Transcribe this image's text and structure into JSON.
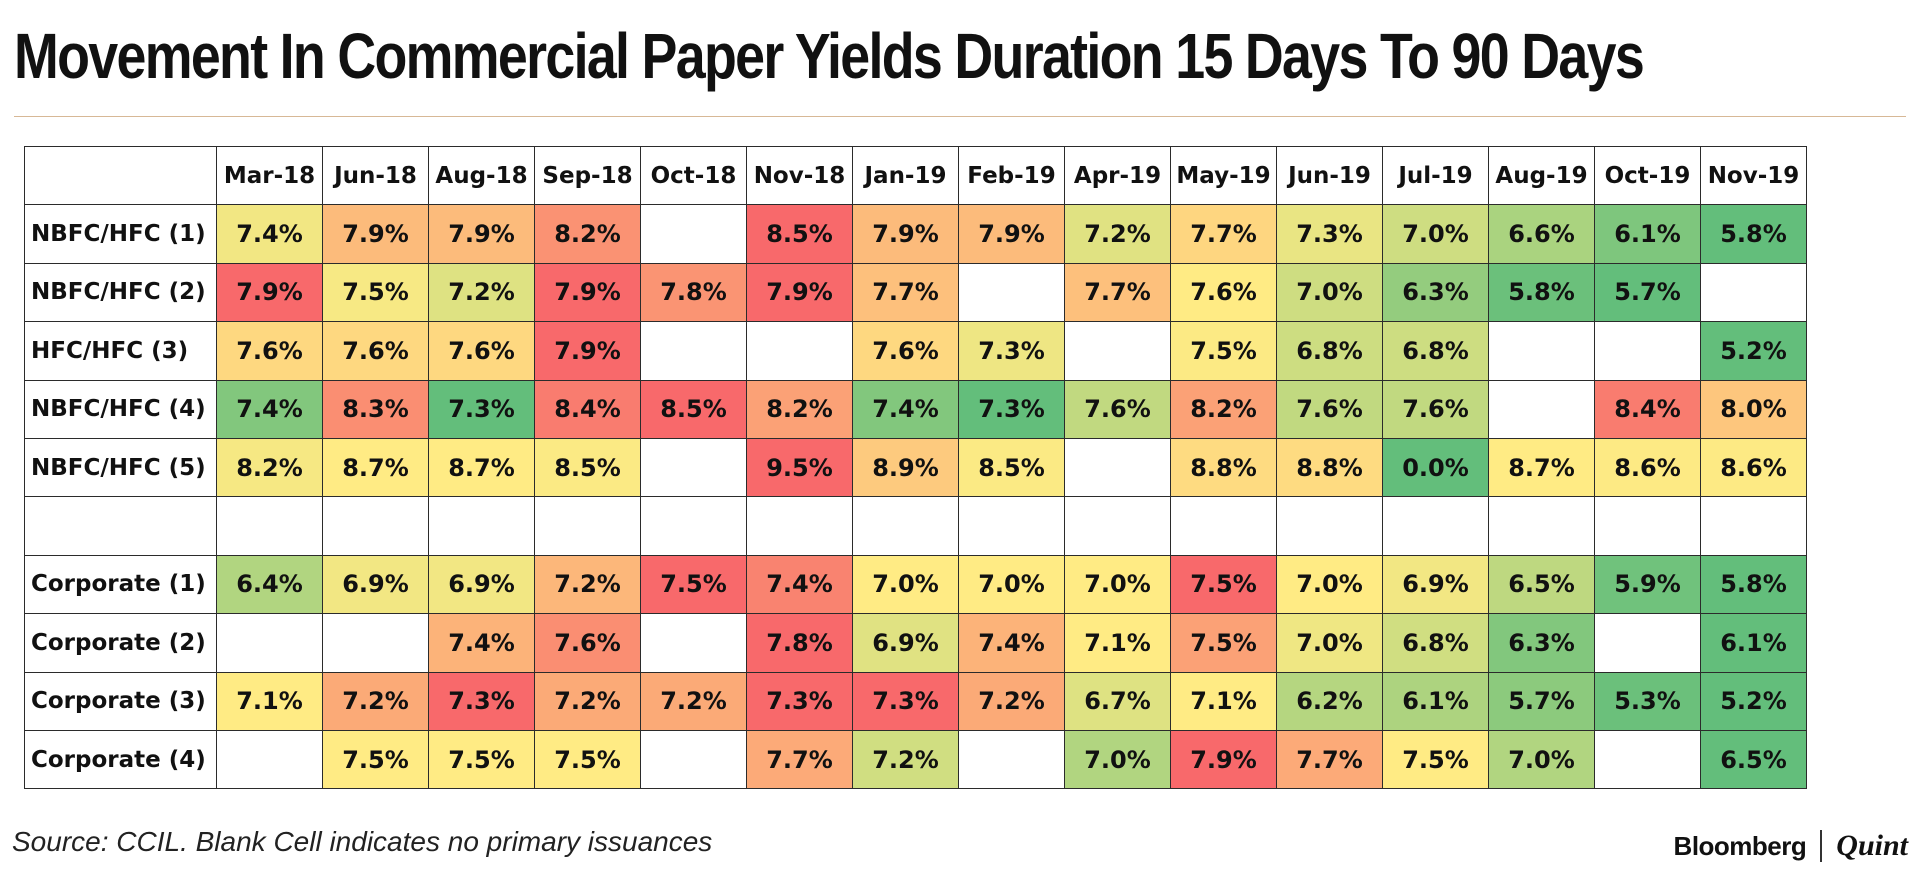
{
  "title": "Movement In Commercial Paper Yields Duration 15 Days To 90 Days",
  "source": "Source: CCIL. Blank Cell indicates no primary issuances",
  "brand": {
    "primary": "Bloomberg",
    "secondary": "Quint"
  },
  "colors": {
    "low": "#63be7b",
    "mid": "#ffeb84",
    "high": "#f8696b",
    "empty": "#ffffff",
    "border": "#2b2b2b"
  },
  "chart_data": {
    "type": "heatmap",
    "title": "Movement In Commercial Paper Yields Duration 15 Days To 90 Days",
    "columns": [
      "Mar-18",
      "Jun-18",
      "Aug-18",
      "Sep-18",
      "Oct-18",
      "Nov-18",
      "Jan-19",
      "Feb-19",
      "Apr-19",
      "May-19",
      "Jun-19",
      "Jul-19",
      "Aug-19",
      "Oct-19",
      "Nov-19"
    ],
    "rows": [
      {
        "label": "NBFC/HFC (1)",
        "values": [
          "7.4%",
          "7.9%",
          "7.9%",
          "8.2%",
          "",
          "8.5%",
          "7.9%",
          "7.9%",
          "7.2%",
          "7.7%",
          "7.3%",
          "7.0%",
          "6.6%",
          "6.1%",
          "5.8%"
        ]
      },
      {
        "label": "NBFC/HFC (2)",
        "values": [
          "7.9%",
          "7.5%",
          "7.2%",
          "7.9%",
          "7.8%",
          "7.9%",
          "7.7%",
          "",
          "7.7%",
          "7.6%",
          "7.0%",
          "6.3%",
          "5.8%",
          "5.7%",
          ""
        ]
      },
      {
        "label": "HFC/HFC (3)",
        "values": [
          "7.6%",
          "7.6%",
          "7.6%",
          "7.9%",
          "",
          "",
          "7.6%",
          "7.3%",
          "",
          "7.5%",
          "6.8%",
          "6.8%",
          "",
          "",
          "5.2%"
        ]
      },
      {
        "label": "NBFC/HFC (4)",
        "values": [
          "7.4%",
          "8.3%",
          "7.3%",
          "8.4%",
          "8.5%",
          "8.2%",
          "7.4%",
          "7.3%",
          "7.6%",
          "8.2%",
          "7.6%",
          "7.6%",
          "",
          "8.4%",
          "8.0%"
        ]
      },
      {
        "label": "NBFC/HFC (5)",
        "values": [
          "8.2%",
          "8.7%",
          "8.7%",
          "8.5%",
          "",
          "9.5%",
          "8.9%",
          "8.5%",
          "",
          "8.8%",
          "8.8%",
          "0.0%",
          "8.7%",
          "8.6%",
          "8.6%"
        ]
      },
      {
        "label": "",
        "values": [
          "",
          "",
          "",
          "",
          "",
          "",
          "",
          "",
          "",
          "",
          "",
          "",
          "",
          "",
          ""
        ]
      },
      {
        "label": "Corporate (1)",
        "values": [
          "6.4%",
          "6.9%",
          "6.9%",
          "7.2%",
          "7.5%",
          "7.4%",
          "7.0%",
          "7.0%",
          "7.0%",
          "7.5%",
          "7.0%",
          "6.9%",
          "6.5%",
          "5.9%",
          "5.8%"
        ]
      },
      {
        "label": "Corporate (2)",
        "values": [
          "",
          "",
          "7.4%",
          "7.6%",
          "",
          "7.8%",
          "6.9%",
          "7.4%",
          "7.1%",
          "7.5%",
          "7.0%",
          "6.8%",
          "6.3%",
          "",
          "6.1%"
        ]
      },
      {
        "label": "Corporate (3)",
        "values": [
          "7.1%",
          "7.2%",
          "7.3%",
          "7.2%",
          "7.2%",
          "7.3%",
          "7.3%",
          "7.2%",
          "6.7%",
          "7.1%",
          "6.2%",
          "6.1%",
          "5.7%",
          "5.3%",
          "5.2%"
        ]
      },
      {
        "label": "Corporate (4)",
        "values": [
          "",
          "7.5%",
          "7.5%",
          "7.5%",
          "",
          "7.7%",
          "7.2%",
          "",
          "7.0%",
          "7.9%",
          "7.7%",
          "7.5%",
          "7.0%",
          "",
          "6.5%"
        ]
      }
    ],
    "color_scale": "per-row green (low) to yellow (mid) to red (high)",
    "note": "Blank Cell indicates no primary issuances"
  }
}
